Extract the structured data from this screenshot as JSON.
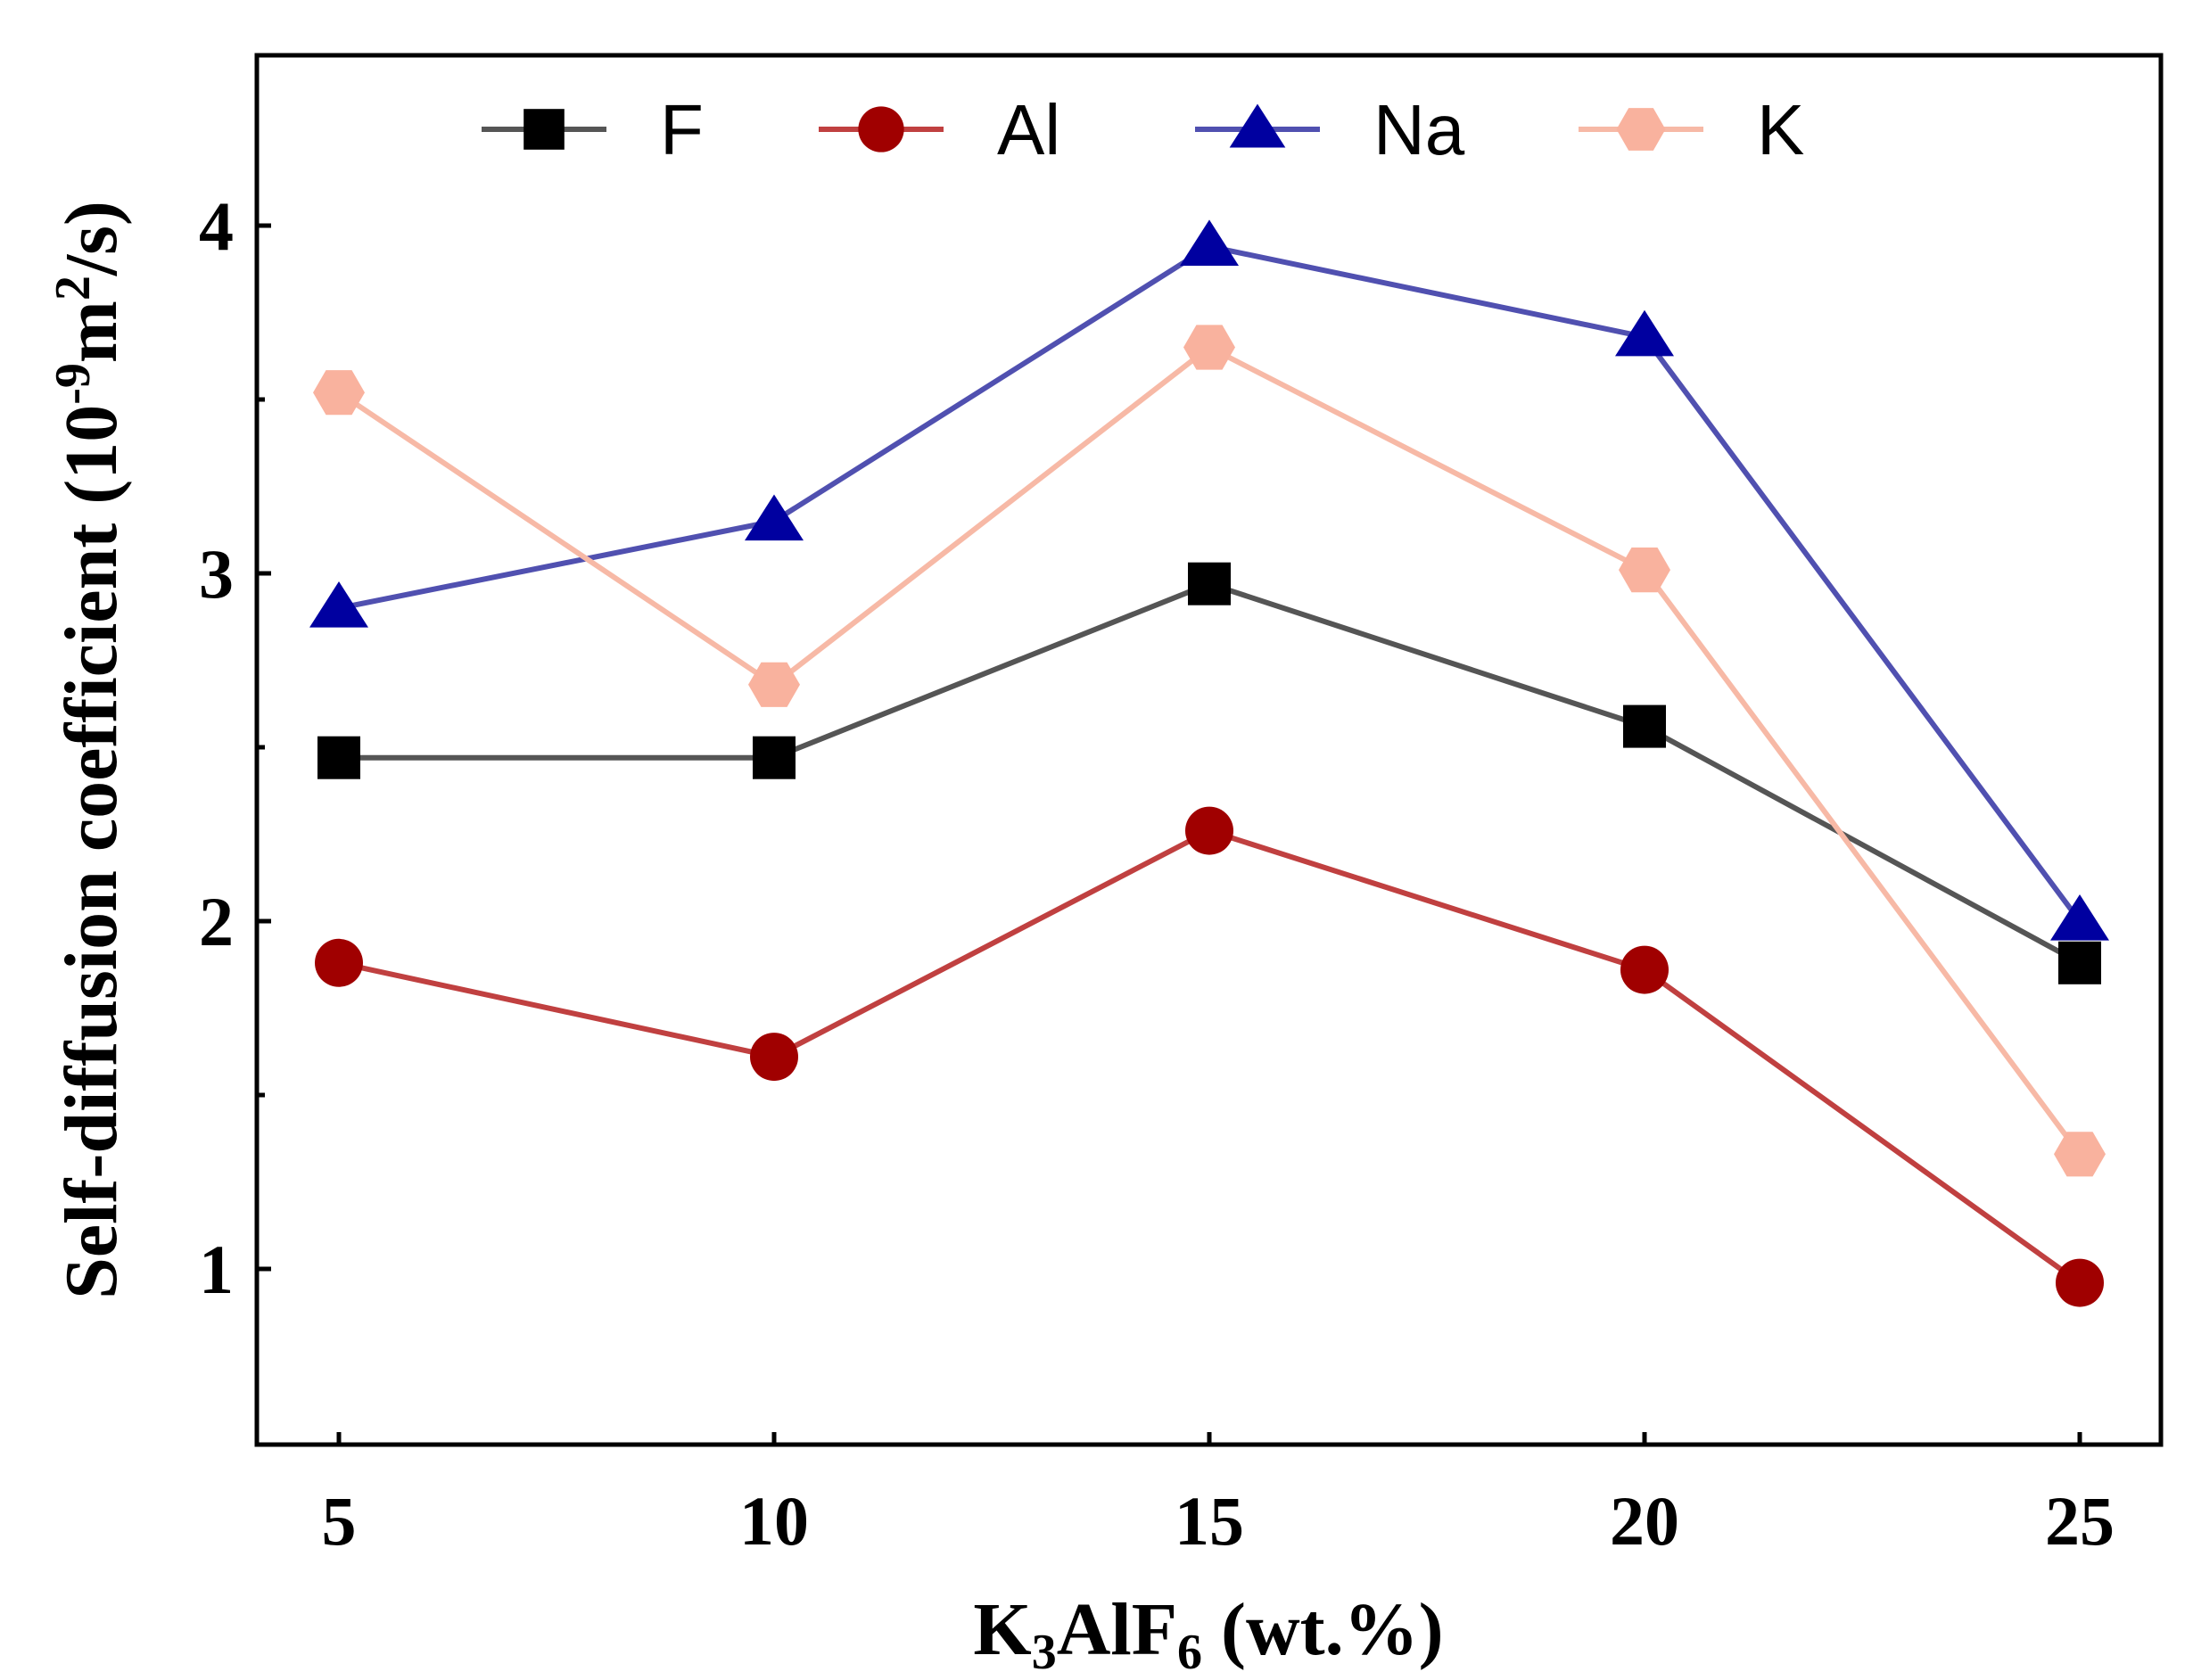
{
  "chart_data": {
    "type": "line",
    "title": "",
    "xlabel": {
      "base": "K",
      "sub1": "3",
      "mid": "AlF",
      "sub2": "6",
      "tail": " (wt.%)"
    },
    "ylabel": {
      "prefix": "Self-diffusion coefficient (10",
      "sup1": "-9",
      "mid": "m",
      "sup2": "2",
      "tail": "/s)"
    },
    "x": [
      5,
      10,
      15,
      20,
      25
    ],
    "xlim": [
      4,
      26
    ],
    "ylim": [
      0.5,
      4.5
    ],
    "xticks": [
      "5",
      "10",
      "15",
      "20",
      "25"
    ],
    "yticks": [
      "1",
      "2",
      "3",
      "4"
    ],
    "yticks_values": [
      1,
      2,
      3,
      4
    ],
    "y_minor_ticks": [
      1.5,
      2.5,
      3.5
    ],
    "grid": false,
    "legend_position": "top",
    "series": [
      {
        "name": "F",
        "marker": "square",
        "color": "#000000",
        "line_color": "#555555",
        "values": [
          2.47,
          2.47,
          2.97,
          2.56,
          1.88
        ]
      },
      {
        "name": "Al",
        "marker": "circle",
        "color": "#a00000",
        "line_color": "#c04040",
        "values": [
          1.88,
          1.61,
          2.26,
          1.86,
          0.96
        ]
      },
      {
        "name": "Na",
        "marker": "triangle",
        "color": "#0000a0",
        "line_color": "#5050b0",
        "values": [
          2.9,
          3.15,
          3.94,
          3.68,
          2.0
        ]
      },
      {
        "name": "K",
        "marker": "hexagon",
        "color": "#f9b29e",
        "line_color": "#f7b9a6",
        "values": [
          3.52,
          2.68,
          3.65,
          3.01,
          1.33
        ]
      }
    ]
  }
}
